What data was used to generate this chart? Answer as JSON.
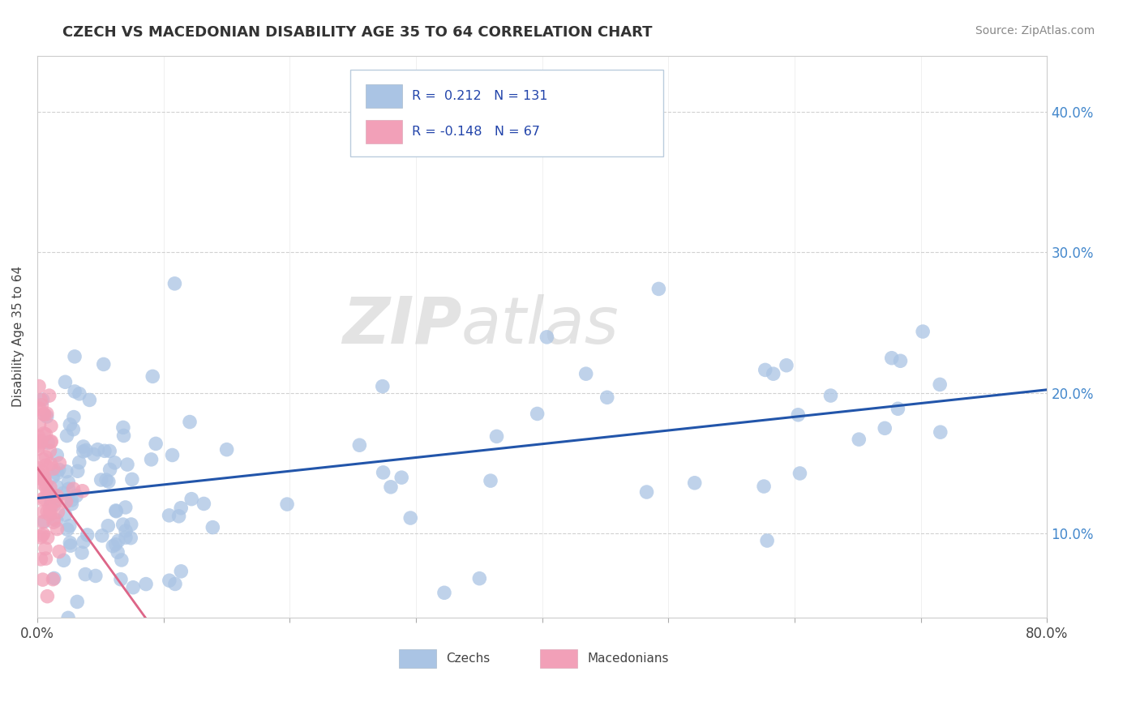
{
  "title": "CZECH VS MACEDONIAN DISABILITY AGE 35 TO 64 CORRELATION CHART",
  "source": "Source: ZipAtlas.com",
  "ylabel": "Disability Age 35 to 64",
  "xlim": [
    0.0,
    0.8
  ],
  "ylim": [
    0.04,
    0.44
  ],
  "x_ticks": [
    0.0,
    0.1,
    0.2,
    0.3,
    0.4,
    0.5,
    0.6,
    0.7,
    0.8
  ],
  "y_ticks": [
    0.1,
    0.2,
    0.3,
    0.4
  ],
  "y_tick_labels": [
    "10.0%",
    "20.0%",
    "30.0%",
    "40.0%"
  ],
  "czech_R": 0.212,
  "czech_N": 131,
  "macedonian_R": -0.148,
  "macedonian_N": 67,
  "czech_color": "#aac4e4",
  "macedonian_color": "#f2a0b8",
  "trend_czech_color": "#2255aa",
  "trend_macedonian_color": "#dd6688",
  "watermark_zip": "ZIP",
  "watermark_atlas": "atlas",
  "legend_R1_color": "#2255aa",
  "legend_R2_color": "#2255aa",
  "legend_N1_color": "#2255aa",
  "legend_N2_color": "#2255aa",
  "bottom_legend_labels": [
    "Czechs",
    "Macedonians"
  ]
}
